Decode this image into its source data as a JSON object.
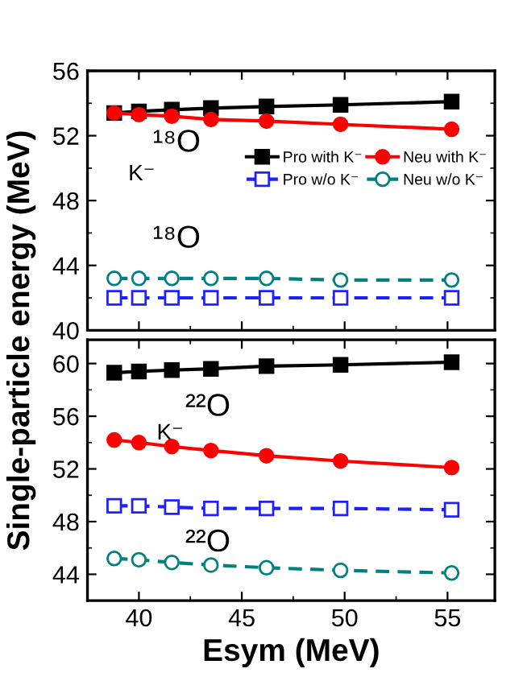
{
  "chart_data": [
    {
      "type": "line",
      "ylabel": "Single-particle energy (MeV)",
      "x": [
        38.8,
        40,
        41.6,
        43.5,
        46.2,
        49.8,
        55.2
      ],
      "xlim": [
        37.5,
        57.3
      ],
      "xticks": [
        40,
        45,
        50,
        55
      ],
      "ylim": [
        40,
        56
      ],
      "yticks": [
        40,
        44,
        48,
        52,
        56
      ],
      "tick_labels": "y",
      "legend": "center right",
      "grid": false,
      "annotations": [
        "¹⁸O",
        "K⁻",
        "¹⁸O"
      ],
      "series": [
        {
          "name": "Pro with K⁻",
          "color": "#000000",
          "marker": "square",
          "line_style": "solid",
          "values": [
            53.4,
            53.5,
            53.6,
            53.7,
            53.8,
            53.9,
            54.1
          ]
        },
        {
          "name": "Neu with K⁻",
          "color": "#ff0000",
          "marker": "circle",
          "line_style": "solid",
          "values": [
            53.4,
            53.3,
            53.2,
            53.0,
            52.9,
            52.7,
            52.4
          ]
        },
        {
          "name": "Pro w/o K⁻",
          "color": "#2020ff",
          "marker": "square",
          "line_style": "dashed",
          "values": [
            42.0,
            42.0,
            42.0,
            42.0,
            42.0,
            42.0,
            42.0
          ]
        },
        {
          "name": "Neu w/o K⁻",
          "color": "#008080",
          "marker": "circle",
          "line_style": "dashed",
          "values": [
            43.2,
            43.2,
            43.2,
            43.2,
            43.2,
            43.1,
            43.1
          ]
        }
      ]
    },
    {
      "type": "line",
      "xlabel": "Esym (MeV)",
      "x": [
        38.8,
        40,
        41.6,
        43.5,
        46.2,
        49.8,
        55.2
      ],
      "xlim": [
        37.5,
        57.3
      ],
      "xticks": [
        40,
        45,
        50,
        55
      ],
      "ylim": [
        42,
        61.8
      ],
      "yticks": [
        44,
        48,
        52,
        56,
        60
      ],
      "grid": false,
      "annotations": [
        "²²O",
        "K⁻",
        "²²O"
      ],
      "series": [
        {
          "color": "#000000",
          "marker": "square",
          "line_style": "solid",
          "values": [
            59.3,
            59.4,
            59.5,
            59.6,
            59.8,
            59.9,
            60.1
          ]
        },
        {
          "color": "#ff0000",
          "marker": "circle",
          "line_style": "solid",
          "values": [
            54.2,
            54.0,
            53.7,
            53.4,
            53.0,
            52.6,
            52.1
          ]
        },
        {
          "color": "#2020ff",
          "marker": "square",
          "line_style": "dashed",
          "values": [
            49.2,
            49.2,
            49.1,
            49.0,
            49.0,
            49.0,
            48.9
          ]
        },
        {
          "color": "#008080",
          "marker": "circle",
          "line_style": "dashed",
          "values": [
            45.2,
            45.1,
            44.9,
            44.7,
            44.5,
            44.3,
            44.1
          ]
        }
      ]
    }
  ]
}
